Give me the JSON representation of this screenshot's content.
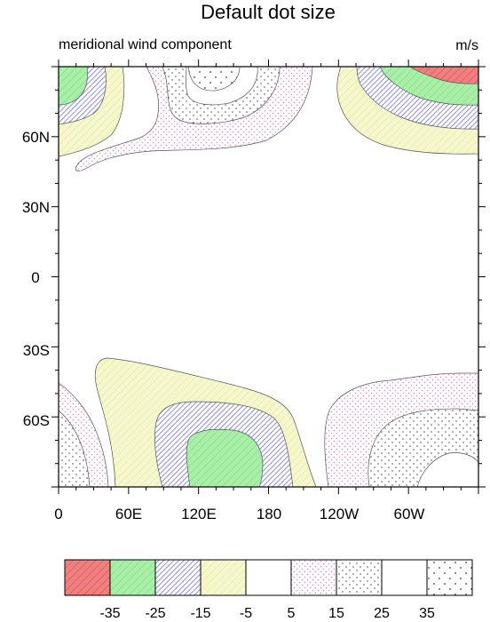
{
  "chart_data": {
    "type": "contour",
    "title": "Default dot size",
    "subtitle_left": "meridional wind component",
    "subtitle_right": "m/s",
    "x_ticks": [
      "0",
      "60E",
      "120E",
      "180",
      "120W",
      "60W"
    ],
    "y_ticks": [
      "60N",
      "30N",
      "0",
      "30S",
      "60S"
    ],
    "xlim": [
      0,
      360
    ],
    "ylim": [
      -90,
      90
    ],
    "contour_levels": [
      -35,
      -25,
      -15,
      -5,
      5,
      15,
      25,
      35
    ],
    "colorbar_labels": [
      "-35",
      "-25",
      "-15",
      "-5",
      "5",
      "15",
      "25",
      "35"
    ],
    "fill_bins": [
      {
        "range": "< -35",
        "color": "#f08080",
        "pattern": "diagonal-hatch"
      },
      {
        "range": "-35 to -25",
        "color": "#a8f0a8",
        "pattern": "diagonal-hatch"
      },
      {
        "range": "-25 to -15",
        "color": "#a0a0f0",
        "pattern": "dense-hatch"
      },
      {
        "range": "-15 to -5",
        "color": "#f4f4c0",
        "pattern": "diagonal-hatch"
      },
      {
        "range": "-5 to 5",
        "color": "#ffffff",
        "pattern": "none"
      },
      {
        "range": "5 to 15",
        "color": "#ffffff",
        "pattern": "pink-dots"
      },
      {
        "range": "15 to 25",
        "color": "#ffffff",
        "pattern": "dots"
      },
      {
        "range": "25 to 35",
        "color": "#ffffff",
        "pattern": "none"
      },
      {
        "range": "> 35",
        "color": "#ffffff",
        "pattern": "sparse-dots"
      }
    ]
  }
}
